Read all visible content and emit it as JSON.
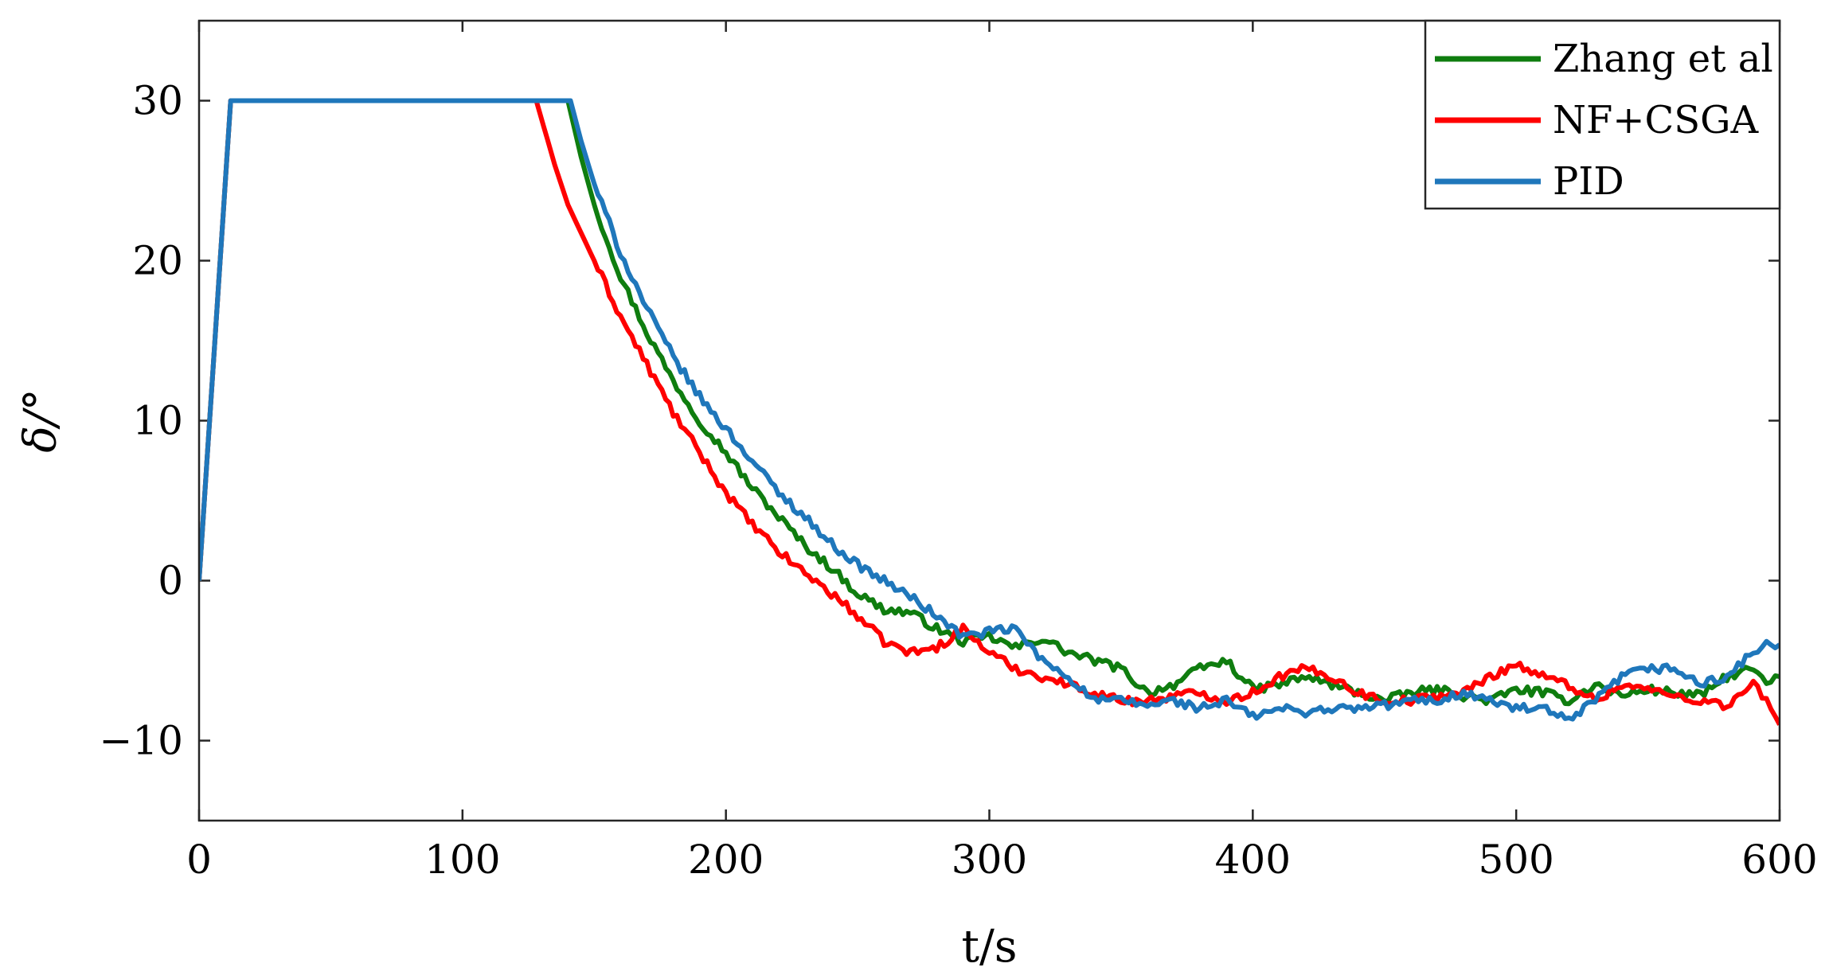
{
  "chart_data": {
    "type": "line",
    "title": "",
    "xlabel": "t/s",
    "ylabel": "δ/°",
    "xlim": [
      0,
      600
    ],
    "ylim": [
      -15,
      35
    ],
    "xticks": [
      0,
      100,
      200,
      300,
      400,
      500,
      600
    ],
    "yticks": [
      -10,
      0,
      10,
      20,
      30
    ],
    "xtick_labels": [
      "0",
      "100",
      "200",
      "300",
      "400",
      "500",
      "600"
    ],
    "ytick_labels": [
      "−10",
      "0",
      "10",
      "20",
      "30"
    ],
    "grid": false,
    "legend_position": "top-right",
    "series": [
      {
        "name": "Zhang et al",
        "color": "#0f7d0f",
        "points": [
          [
            0,
            0
          ],
          [
            12,
            30
          ],
          [
            140,
            30
          ],
          [
            145,
            26.5
          ],
          [
            150,
            23.5
          ],
          [
            160,
            19
          ],
          [
            170,
            15.5
          ],
          [
            180,
            12.5
          ],
          [
            190,
            10
          ],
          [
            200,
            8
          ],
          [
            210,
            5.8
          ],
          [
            220,
            4
          ],
          [
            230,
            2.2
          ],
          [
            240,
            0.8
          ],
          [
            250,
            -0.8
          ],
          [
            260,
            -1.8
          ],
          [
            270,
            -2
          ],
          [
            280,
            -3
          ],
          [
            290,
            -3.8
          ],
          [
            300,
            -3.5
          ],
          [
            310,
            -4.2
          ],
          [
            320,
            -3.6
          ],
          [
            330,
            -4.5
          ],
          [
            340,
            -5
          ],
          [
            350,
            -5.5
          ],
          [
            360,
            -7
          ],
          [
            370,
            -6.5
          ],
          [
            380,
            -5.5
          ],
          [
            390,
            -5
          ],
          [
            400,
            -6.8
          ],
          [
            410,
            -6.5
          ],
          [
            420,
            -6
          ],
          [
            430,
            -6.5
          ],
          [
            440,
            -7
          ],
          [
            450,
            -7.5
          ],
          [
            460,
            -7
          ],
          [
            470,
            -6.8
          ],
          [
            480,
            -7.2
          ],
          [
            490,
            -7.5
          ],
          [
            500,
            -6.8
          ],
          [
            510,
            -7
          ],
          [
            520,
            -7.5
          ],
          [
            530,
            -6.5
          ],
          [
            540,
            -7.2
          ],
          [
            550,
            -6.8
          ],
          [
            560,
            -7
          ],
          [
            570,
            -7.2
          ],
          [
            580,
            -6
          ],
          [
            590,
            -5.5
          ],
          [
            595,
            -6.5
          ],
          [
            600,
            -6
          ]
        ]
      },
      {
        "name": "NF+CSGA",
        "color": "#ff0000",
        "points": [
          [
            0,
            0
          ],
          [
            12,
            30
          ],
          [
            128,
            30
          ],
          [
            135,
            26
          ],
          [
            140,
            23.5
          ],
          [
            150,
            20
          ],
          [
            160,
            16.5
          ],
          [
            170,
            13.5
          ],
          [
            180,
            10.5
          ],
          [
            190,
            8
          ],
          [
            200,
            5.5
          ],
          [
            210,
            3.5
          ],
          [
            220,
            1.8
          ],
          [
            230,
            0.5
          ],
          [
            240,
            -0.8
          ],
          [
            250,
            -2.2
          ],
          [
            260,
            -3.8
          ],
          [
            270,
            -4.5
          ],
          [
            280,
            -4.2
          ],
          [
            290,
            -3
          ],
          [
            300,
            -4.5
          ],
          [
            310,
            -5.5
          ],
          [
            320,
            -6
          ],
          [
            330,
            -6.5
          ],
          [
            340,
            -7
          ],
          [
            350,
            -7.5
          ],
          [
            360,
            -7.5
          ],
          [
            370,
            -7.2
          ],
          [
            380,
            -7
          ],
          [
            390,
            -7.5
          ],
          [
            400,
            -7
          ],
          [
            410,
            -6
          ],
          [
            420,
            -5.5
          ],
          [
            430,
            -6
          ],
          [
            440,
            -7
          ],
          [
            450,
            -7.5
          ],
          [
            460,
            -7.5
          ],
          [
            470,
            -7.2
          ],
          [
            480,
            -7
          ],
          [
            490,
            -6
          ],
          [
            500,
            -5.2
          ],
          [
            510,
            -6
          ],
          [
            520,
            -6.5
          ],
          [
            530,
            -7.5
          ],
          [
            540,
            -6.5
          ],
          [
            550,
            -6.8
          ],
          [
            560,
            -7.2
          ],
          [
            570,
            -7.5
          ],
          [
            580,
            -7.8
          ],
          [
            590,
            -6.5
          ],
          [
            595,
            -7.5
          ],
          [
            600,
            -9
          ]
        ]
      },
      {
        "name": "PID",
        "color": "#1f77bb",
        "points": [
          [
            0,
            0
          ],
          [
            12,
            30
          ],
          [
            141,
            30
          ],
          [
            145,
            27.5
          ],
          [
            150,
            24.8
          ],
          [
            160,
            20.5
          ],
          [
            170,
            17
          ],
          [
            180,
            14
          ],
          [
            190,
            11.5
          ],
          [
            200,
            9.5
          ],
          [
            210,
            7.5
          ],
          [
            220,
            5.5
          ],
          [
            230,
            4
          ],
          [
            240,
            2.3
          ],
          [
            250,
            1
          ],
          [
            260,
            0
          ],
          [
            270,
            -1
          ],
          [
            280,
            -2.2
          ],
          [
            290,
            -3.5
          ],
          [
            300,
            -3.2
          ],
          [
            310,
            -3
          ],
          [
            320,
            -5
          ],
          [
            330,
            -6
          ],
          [
            340,
            -7.5
          ],
          [
            350,
            -7.5
          ],
          [
            360,
            -7.8
          ],
          [
            370,
            -7.5
          ],
          [
            380,
            -8
          ],
          [
            390,
            -7.5
          ],
          [
            400,
            -8.5
          ],
          [
            410,
            -8
          ],
          [
            420,
            -8.2
          ],
          [
            430,
            -8
          ],
          [
            440,
            -8
          ],
          [
            450,
            -7.8
          ],
          [
            460,
            -7.5
          ],
          [
            470,
            -7.5
          ],
          [
            480,
            -7
          ],
          [
            490,
            -7.5
          ],
          [
            500,
            -8
          ],
          [
            510,
            -8
          ],
          [
            520,
            -8.8
          ],
          [
            530,
            -7.5
          ],
          [
            540,
            -6
          ],
          [
            550,
            -5.5
          ],
          [
            560,
            -5.5
          ],
          [
            570,
            -6.5
          ],
          [
            580,
            -6
          ],
          [
            590,
            -4.5
          ],
          [
            595,
            -4
          ],
          [
            600,
            -4
          ]
        ]
      }
    ]
  }
}
